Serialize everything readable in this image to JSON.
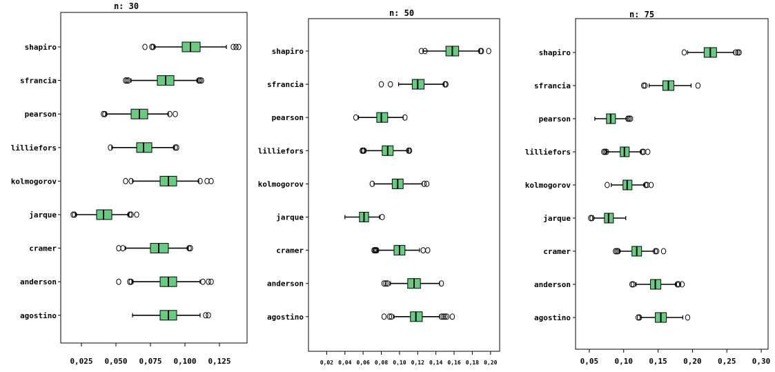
{
  "chart_data": [
    {
      "type": "boxplot",
      "title": "n: 30",
      "categories": [
        "shapiro",
        "sfrancia",
        "pearson",
        "lilliefors",
        "kolmogorov",
        "jarque",
        "cramer",
        "anderson",
        "agostino"
      ],
      "xlim": [
        0.01,
        0.145
      ],
      "ticks": [
        0.025,
        0.05,
        0.075,
        0.1,
        0.125
      ],
      "tick_labels": [
        "0,025",
        "0,050",
        "0,075",
        "0,100",
        "0,125"
      ],
      "boxes": [
        {
          "whisker_low": 0.078,
          "q1": 0.098,
          "median": 0.104,
          "q3": 0.111,
          "whisker_high": 0.13,
          "outliers": [
            0.071,
            0.076,
            0.077,
            0.135,
            0.137,
            0.139
          ]
        },
        {
          "whisker_low": 0.061,
          "q1": 0.08,
          "median": 0.086,
          "q3": 0.092,
          "whisker_high": 0.109,
          "outliers": [
            0.057,
            0.058,
            0.059,
            0.11,
            0.111,
            0.112
          ]
        },
        {
          "whisker_low": 0.043,
          "q1": 0.061,
          "median": 0.067,
          "q3": 0.073,
          "whisker_high": 0.088,
          "outliers": [
            0.041,
            0.042,
            0.089,
            0.093
          ]
        },
        {
          "whisker_low": 0.047,
          "q1": 0.065,
          "median": 0.07,
          "q3": 0.076,
          "whisker_high": 0.092,
          "outliers": [
            0.046,
            0.093,
            0.094
          ]
        },
        {
          "whisker_low": 0.062,
          "q1": 0.082,
          "median": 0.088,
          "q3": 0.094,
          "whisker_high": 0.11,
          "outliers": [
            0.057,
            0.061,
            0.111,
            0.116,
            0.119
          ]
        },
        {
          "whisker_low": 0.021,
          "q1": 0.036,
          "median": 0.041,
          "q3": 0.047,
          "whisker_high": 0.059,
          "outliers": [
            0.019,
            0.02,
            0.06,
            0.061,
            0.065
          ]
        },
        {
          "whisker_low": 0.057,
          "q1": 0.075,
          "median": 0.081,
          "q3": 0.088,
          "whisker_high": 0.102,
          "outliers": [
            0.052,
            0.055,
            0.103,
            0.104
          ]
        },
        {
          "whisker_low": 0.062,
          "q1": 0.082,
          "median": 0.088,
          "q3": 0.094,
          "whisker_high": 0.111,
          "outliers": [
            0.052,
            0.06,
            0.061,
            0.113,
            0.117,
            0.119
          ]
        },
        {
          "whisker_low": 0.062,
          "q1": 0.082,
          "median": 0.088,
          "q3": 0.094,
          "whisker_high": 0.111,
          "outliers": [
            0.115,
            0.117
          ]
        }
      ]
    },
    {
      "type": "boxplot",
      "title": "n: 50",
      "categories": [
        "shapiro",
        "sfrancia",
        "pearson",
        "lilliefors",
        "kolmogorov",
        "jarque",
        "cramer",
        "anderson",
        "agostino"
      ],
      "xlim": [
        0.0,
        0.21
      ],
      "ticks": [
        0.02,
        0.04,
        0.06,
        0.08,
        0.1,
        0.12,
        0.14,
        0.16,
        0.18,
        0.2
      ],
      "tick_labels": [
        "0,02",
        "0,04",
        "0,06",
        "0,08",
        "0,10",
        "0,12",
        "0,14",
        "0,16",
        "0,18",
        "0,20"
      ],
      "boxes": [
        {
          "whisker_low": 0.126,
          "q1": 0.151,
          "median": 0.158,
          "q3": 0.165,
          "whisker_high": 0.188,
          "outliers": [
            0.124,
            0.128,
            0.189,
            0.19,
            0.198
          ]
        },
        {
          "whisker_low": 0.099,
          "q1": 0.114,
          "median": 0.12,
          "q3": 0.127,
          "whisker_high": 0.149,
          "outliers": [
            0.08,
            0.09,
            0.15,
            0.151
          ]
        },
        {
          "whisker_low": 0.055,
          "q1": 0.075,
          "median": 0.08,
          "q3": 0.087,
          "whisker_high": 0.104,
          "outliers": [
            0.052,
            0.106
          ]
        },
        {
          "whisker_low": 0.063,
          "q1": 0.081,
          "median": 0.087,
          "q3": 0.093,
          "whisker_high": 0.11,
          "outliers": [
            0.059,
            0.06,
            0.061,
            0.11,
            0.111
          ]
        },
        {
          "whisker_low": 0.072,
          "q1": 0.092,
          "median": 0.098,
          "q3": 0.104,
          "whisker_high": 0.125,
          "outliers": [
            0.07,
            0.127,
            0.13
          ]
        },
        {
          "whisker_low": 0.04,
          "q1": 0.056,
          "median": 0.061,
          "q3": 0.066,
          "whisker_high": 0.078,
          "outliers": [
            0.081
          ]
        },
        {
          "whisker_low": 0.076,
          "q1": 0.094,
          "median": 0.1,
          "q3": 0.106,
          "whisker_high": 0.122,
          "outliers": [
            0.072,
            0.073,
            0.074,
            0.075,
            0.126,
            0.131
          ]
        },
        {
          "whisker_low": 0.09,
          "q1": 0.109,
          "median": 0.116,
          "q3": 0.123,
          "whisker_high": 0.144,
          "outliers": [
            0.083,
            0.085,
            0.087,
            0.146
          ]
        },
        {
          "whisker_low": 0.094,
          "q1": 0.112,
          "median": 0.118,
          "q3": 0.125,
          "whisker_high": 0.144,
          "outliers": [
            0.083,
            0.089,
            0.091,
            0.146,
            0.148,
            0.15,
            0.152,
            0.158
          ]
        }
      ]
    },
    {
      "type": "boxplot",
      "title": "n: 75",
      "categories": [
        "shapiro",
        "sfrancia",
        "pearson",
        "lilliefors",
        "kolmogorov",
        "jarque",
        "cramer",
        "anderson",
        "agostino"
      ],
      "xlim": [
        0.03,
        0.31
      ],
      "ticks": [
        0.05,
        0.1,
        0.15,
        0.2,
        0.25,
        0.3
      ],
      "tick_labels": [
        "0,05",
        "0,10",
        "0,15",
        "0,20",
        "0,25",
        "0,30"
      ],
      "boxes": [
        {
          "whisker_low": 0.193,
          "q1": 0.217,
          "median": 0.226,
          "q3": 0.235,
          "whisker_high": 0.26,
          "outliers": [
            0.188,
            0.263,
            0.266,
            0.268
          ]
        },
        {
          "whisker_low": 0.137,
          "q1": 0.157,
          "median": 0.165,
          "q3": 0.173,
          "whisker_high": 0.198,
          "outliers": [
            0.129,
            0.131,
            0.208
          ]
        },
        {
          "whisker_low": 0.058,
          "q1": 0.075,
          "median": 0.081,
          "q3": 0.088,
          "whisker_high": 0.105,
          "outliers": [
            0.106,
            0.108,
            0.11
          ]
        },
        {
          "whisker_low": 0.075,
          "q1": 0.095,
          "median": 0.101,
          "q3": 0.108,
          "whisker_high": 0.125,
          "outliers": [
            0.071,
            0.073,
            0.075,
            0.127,
            0.129,
            0.135
          ]
        },
        {
          "whisker_low": 0.082,
          "q1": 0.099,
          "median": 0.105,
          "q3": 0.112,
          "whisker_high": 0.13,
          "outliers": [
            0.076,
            0.132,
            0.134,
            0.14
          ]
        },
        {
          "whisker_low": 0.055,
          "q1": 0.072,
          "median": 0.078,
          "q3": 0.085,
          "whisker_high": 0.103,
          "outliers": [
            0.052,
            0.054
          ]
        },
        {
          "whisker_low": 0.094,
          "q1": 0.112,
          "median": 0.119,
          "q3": 0.126,
          "whisker_high": 0.145,
          "outliers": [
            0.088,
            0.09,
            0.092,
            0.146,
            0.148,
            0.158
          ]
        },
        {
          "whisker_low": 0.118,
          "q1": 0.139,
          "median": 0.146,
          "q3": 0.154,
          "whisker_high": 0.176,
          "outliers": [
            0.112,
            0.114,
            0.178,
            0.18,
            0.185
          ]
        },
        {
          "whisker_low": 0.124,
          "q1": 0.146,
          "median": 0.154,
          "q3": 0.162,
          "whisker_high": 0.186,
          "outliers": [
            0.121,
            0.123,
            0.193
          ]
        }
      ]
    }
  ],
  "colors": {
    "box_fill": "#66cc80",
    "box_stroke": "#000000",
    "outlier_stroke": "#000000"
  }
}
